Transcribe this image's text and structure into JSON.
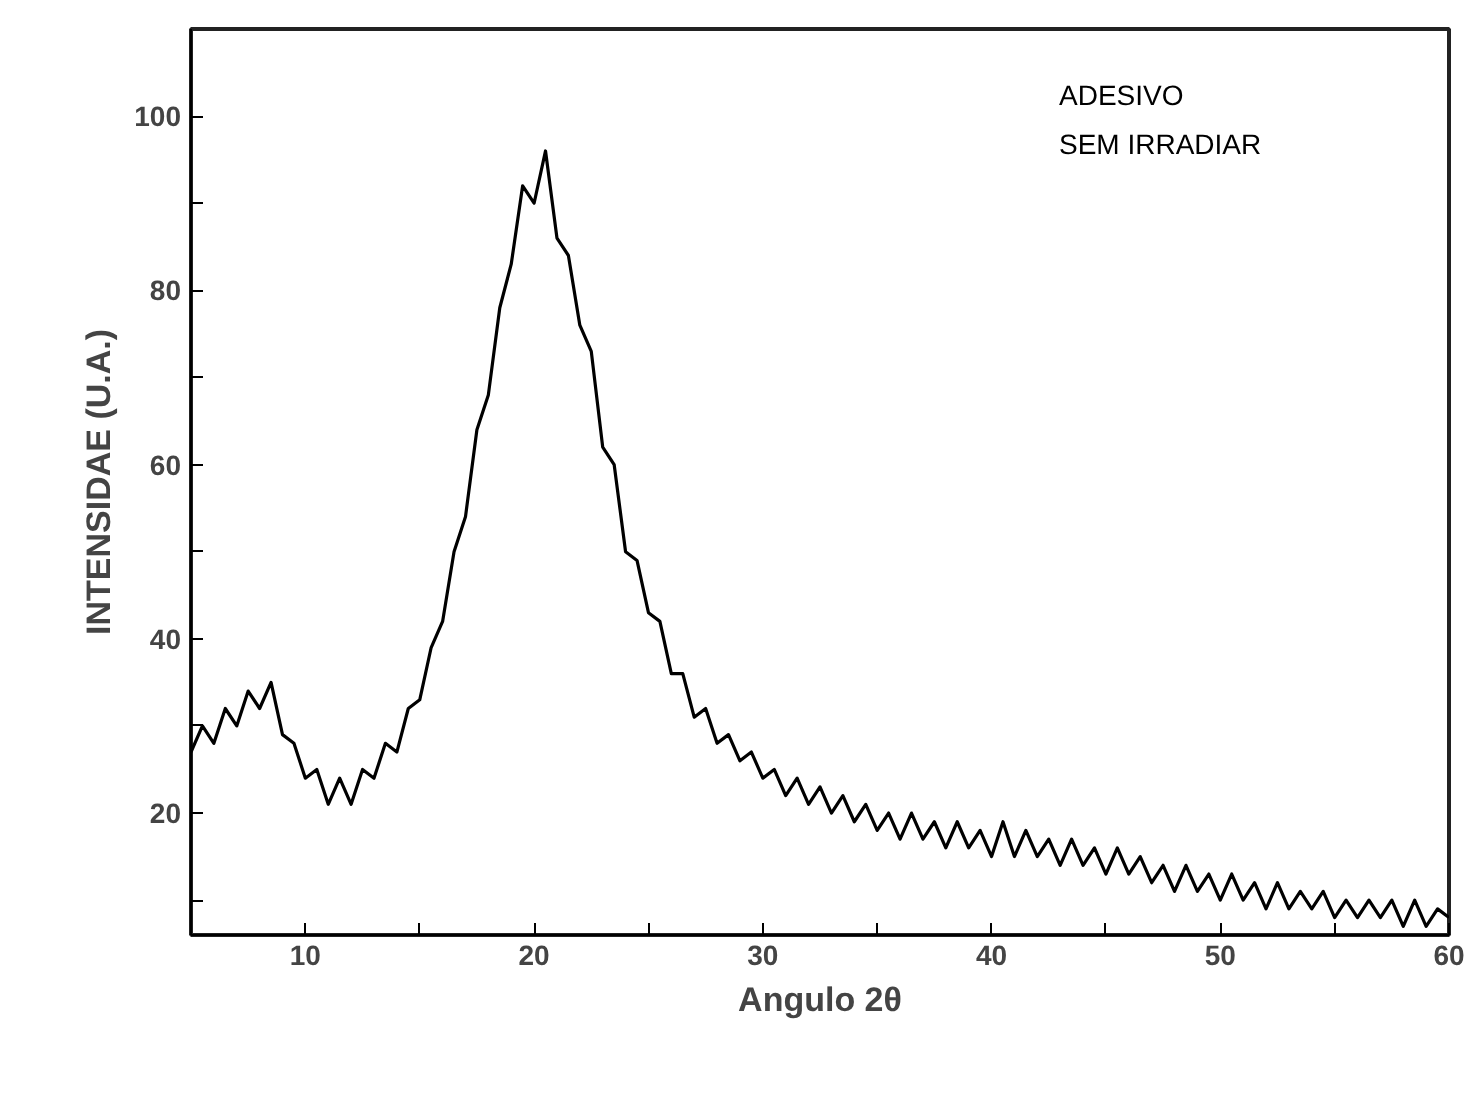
{
  "chart_data": {
    "type": "line",
    "xlabel": "Angulo 2θ",
    "ylabel": "INTENSIDAE (U.A.)",
    "annotations": [
      "ADESIVO",
      "SEM IRRADIAR"
    ],
    "xlim": [
      5,
      60
    ],
    "ylim": [
      6,
      110
    ],
    "xticks": [
      10,
      {
        "value": 15,
        "label": null
      },
      20,
      {
        "value": 25,
        "label": null
      },
      30,
      {
        "value": 35,
        "label": null
      },
      40,
      {
        "value": 45,
        "label": null
      },
      50,
      {
        "value": 55,
        "label": null
      },
      60
    ],
    "yticks": [
      {
        "value": 10,
        "label": null
      },
      20,
      {
        "value": 30,
        "label": null
      },
      40,
      {
        "value": 50,
        "label": null
      },
      60,
      {
        "value": 70,
        "label": null
      },
      80,
      {
        "value": 90,
        "label": null
      },
      100
    ],
    "grid": false,
    "marker": "none",
    "line_style": "solid",
    "series": [
      {
        "color": "#000000",
        "x": [
          5,
          5.5,
          6,
          6.5,
          7,
          7.5,
          8,
          8.5,
          9,
          9.5,
          10,
          10.5,
          11,
          11.5,
          12,
          12.5,
          13,
          13.5,
          14,
          14.5,
          15,
          15.5,
          16,
          16.5,
          17,
          17.5,
          18,
          18.5,
          19,
          19.5,
          20,
          20.5,
          21,
          21.5,
          22,
          22.5,
          23,
          23.5,
          24,
          24.5,
          25,
          25.5,
          26,
          26.5,
          27,
          27.5,
          28,
          28.5,
          29,
          29.5,
          30,
          30.5,
          31,
          31.5,
          32,
          32.5,
          33,
          33.5,
          34,
          34.5,
          35,
          35.5,
          36,
          36.5,
          37,
          37.5,
          38,
          38.5,
          39,
          39.5,
          40,
          40.5,
          41,
          41.5,
          42,
          42.5,
          43,
          43.5,
          44,
          44.5,
          45,
          45.5,
          46,
          46.5,
          47,
          47.5,
          48,
          48.5,
          49,
          49.5,
          50,
          50.5,
          51,
          51.5,
          52,
          52.5,
          53,
          53.5,
          54,
          54.5,
          55,
          55.5,
          56,
          56.5,
          57,
          57.5,
          58,
          58.5,
          59,
          59.5,
          60
        ],
        "values": [
          27,
          30,
          28,
          32,
          30,
          34,
          32,
          35,
          29,
          28,
          24,
          25,
          21,
          24,
          21,
          25,
          24,
          28,
          27,
          32,
          33,
          39,
          42,
          50,
          54,
          64,
          68,
          78,
          83,
          92,
          90,
          96,
          86,
          84,
          76,
          73,
          62,
          60,
          50,
          49,
          43,
          42,
          36,
          36,
          31,
          32,
          28,
          29,
          26,
          27,
          24,
          25,
          22,
          24,
          21,
          23,
          20,
          22,
          19,
          21,
          18,
          20,
          17,
          20,
          17,
          19,
          16,
          19,
          16,
          18,
          15,
          19,
          15,
          18,
          15,
          17,
          14,
          17,
          14,
          16,
          13,
          16,
          13,
          15,
          12,
          14,
          11,
          14,
          11,
          13,
          10,
          13,
          10,
          12,
          9,
          12,
          9,
          11,
          9,
          11,
          8,
          10,
          8,
          10,
          8,
          10,
          7,
          10,
          7,
          9,
          8
        ]
      }
    ]
  }
}
